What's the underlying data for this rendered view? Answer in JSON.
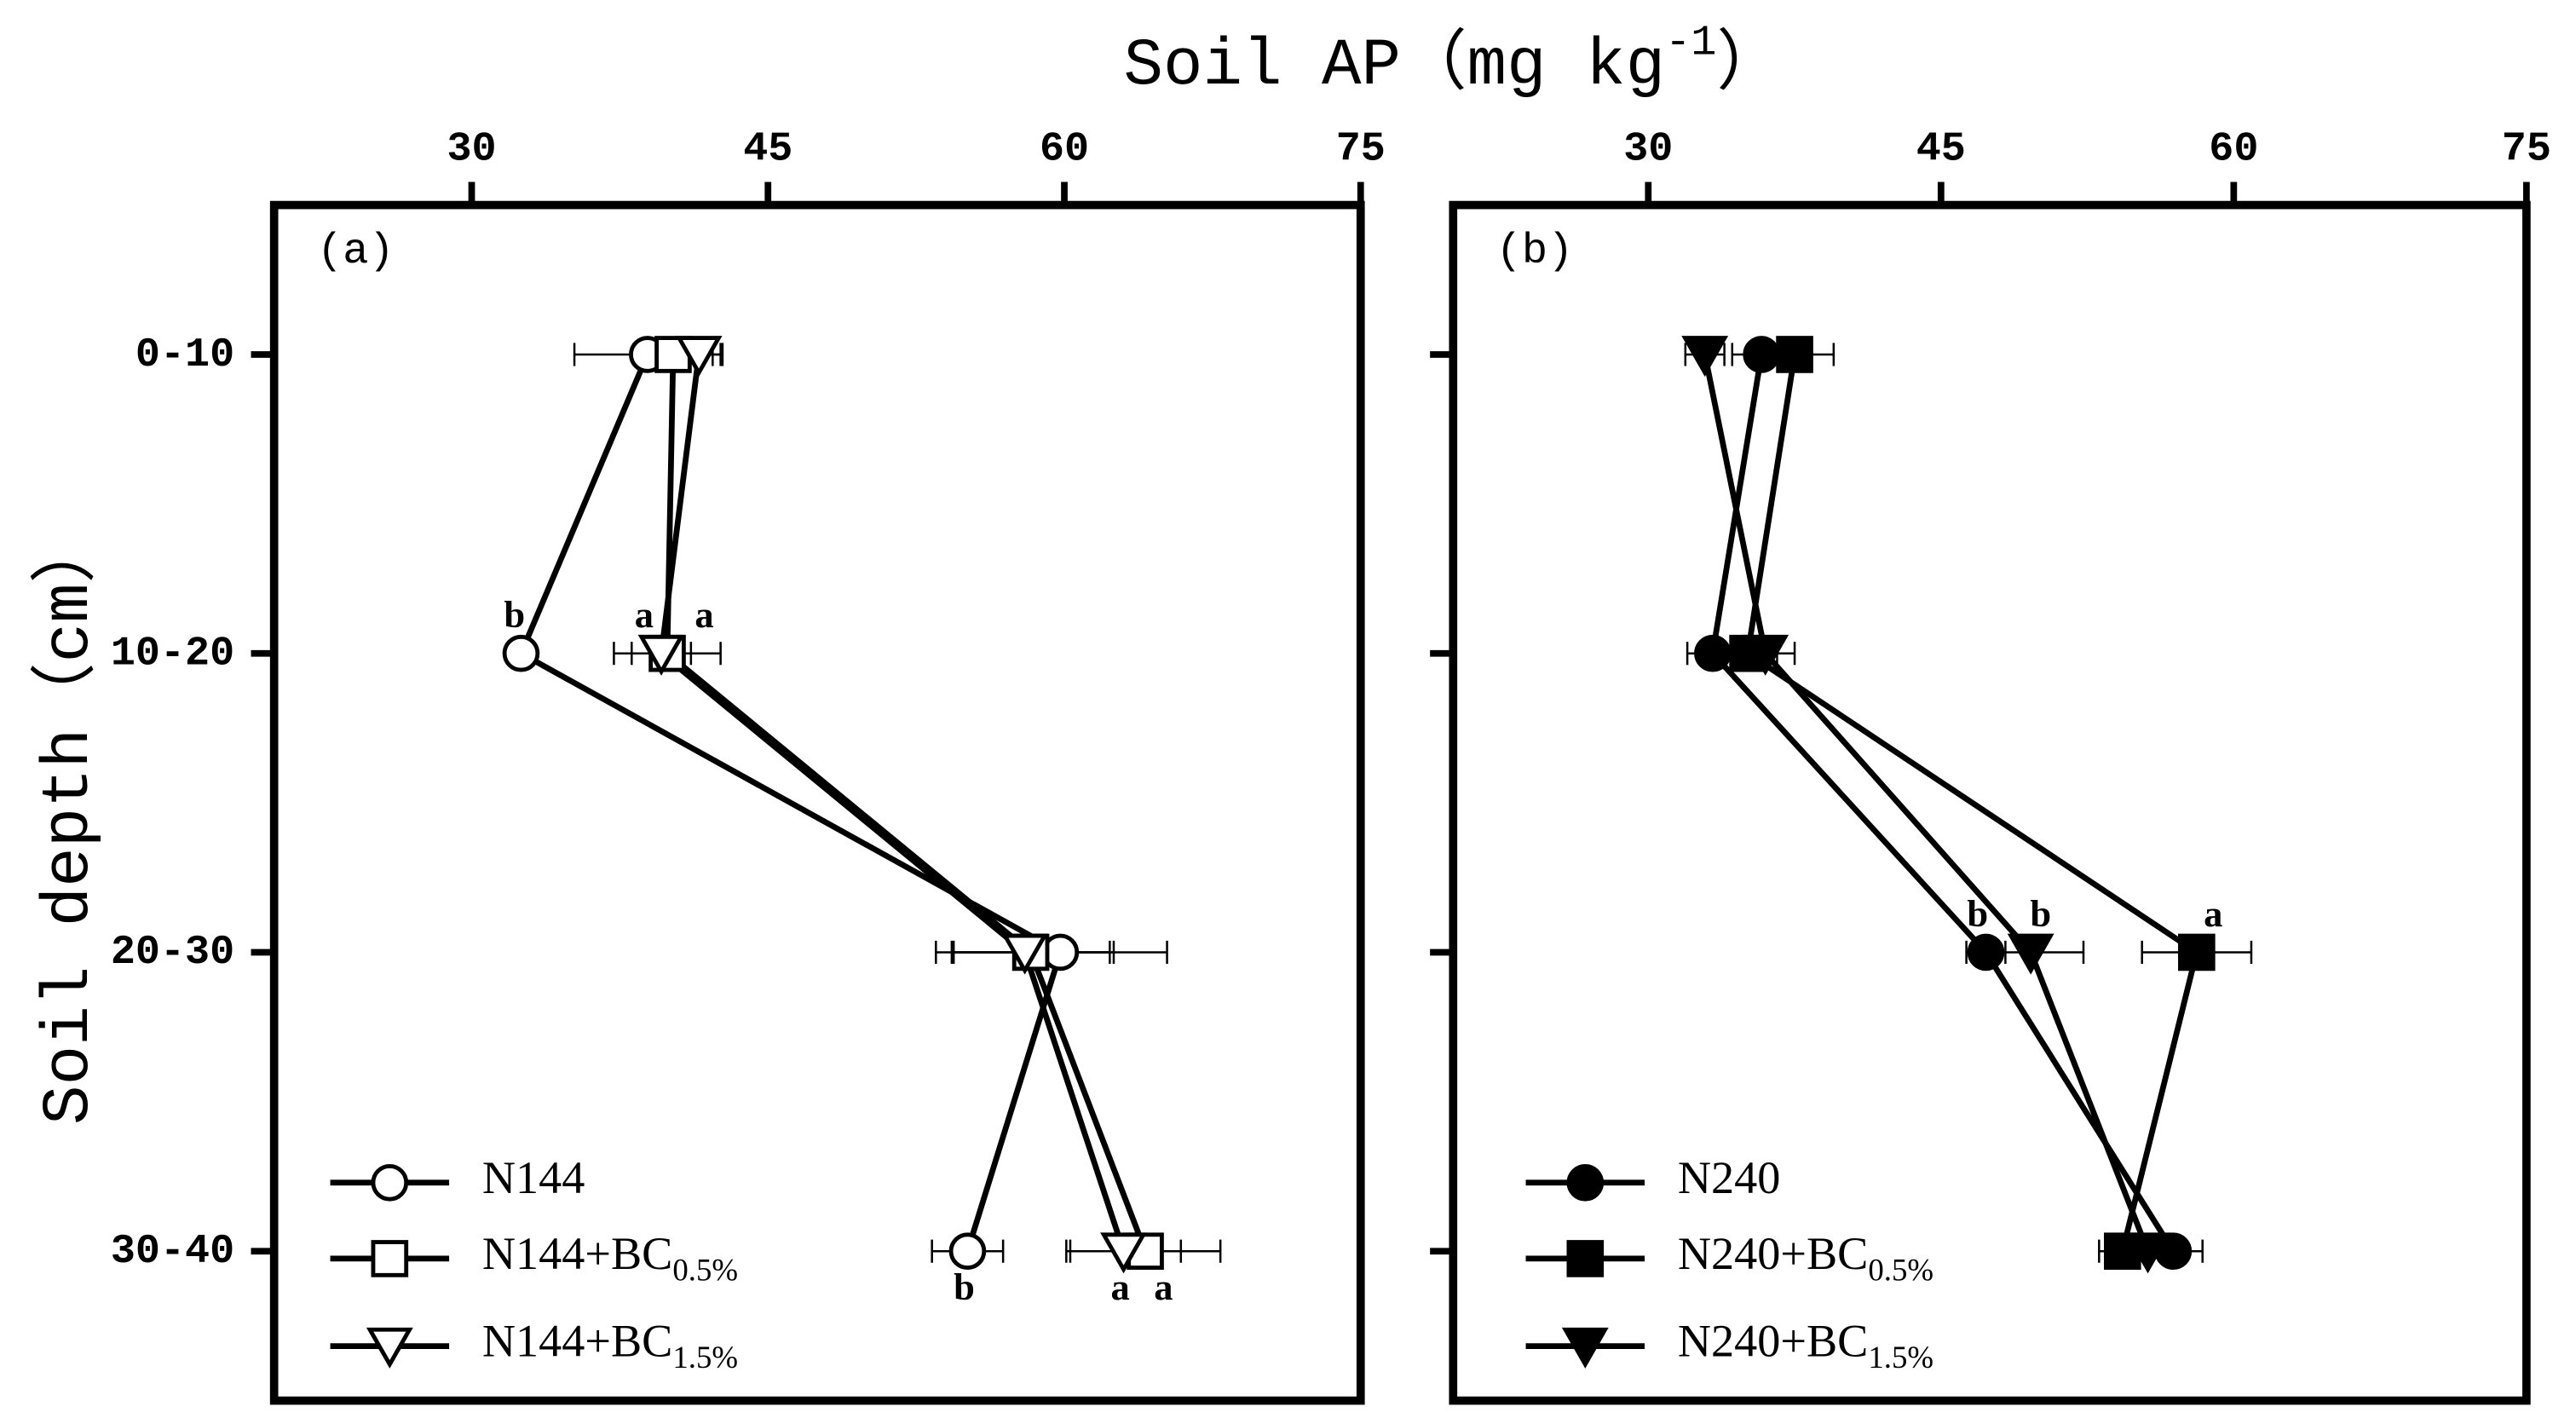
{
  "chart_data": [
    {
      "type": "line",
      "panel_label": "(a)",
      "xlabel": {
        "text": "Soil AP（mg kg",
        "sup": "-1",
        "close": "）"
      },
      "ylabel": "Soil depth（cm）",
      "categories": [
        "0-10",
        "10-20",
        "20-30",
        "30-40"
      ],
      "xlim": [
        20,
        75
      ],
      "xticks": [
        30,
        45,
        60,
        75
      ],
      "legend": "lower left",
      "series": [
        {
          "name": "N144",
          "marker": "circle",
          "fill": "#ffffff",
          "color": "#000000",
          "values": [
            38.9,
            32.5,
            59.8,
            55.1
          ],
          "errors": [
            3.7,
            0.5,
            5.4,
            1.8
          ],
          "labels": [
            null,
            "b",
            null,
            "b"
          ]
        },
        {
          "name": "N144+BC",
          "name_sub": "0.5%",
          "marker": "square",
          "fill": "#ffffff",
          "color": "#000000",
          "values": [
            40.2,
            39.9,
            58.3,
            64.1
          ],
          "errors": [
            2.0,
            2.7,
            4.0,
            3.8
          ],
          "labels": [
            null,
            "a",
            null,
            "a"
          ]
        },
        {
          "name": "N144+BC",
          "name_sub": "1.5%",
          "marker": "triangle",
          "fill": "#ffffff",
          "color": "#000000",
          "values": [
            41.5,
            39.6,
            58.0,
            63.0
          ],
          "errors": [
            1.2,
            1.5,
            4.5,
            2.9
          ],
          "labels": [
            null,
            "a",
            null,
            "a"
          ]
        }
      ]
    },
    {
      "type": "line",
      "panel_label": "(b)",
      "categories": [
        null,
        null,
        null,
        null
      ],
      "xlim": [
        20,
        75
      ],
      "xticks": [
        30,
        45,
        60,
        75
      ],
      "legend": "lower left",
      "series": [
        {
          "name": "N240",
          "marker": "circle",
          "fill": "#000000",
          "color": "#000000",
          "values": [
            35.8,
            33.3,
            47.3,
            56.9
          ],
          "errors": [
            1.5,
            1.3,
            1.0,
            1.5
          ],
          "labels": [
            null,
            null,
            "b",
            null
          ]
        },
        {
          "name": "N240+BC",
          "name_sub": "0.5%",
          "marker": "square",
          "fill": "#000000",
          "color": "#000000",
          "values": [
            37.5,
            35.1,
            58.1,
            54.3
          ],
          "errors": [
            2.0,
            1.5,
            2.8,
            1.2
          ],
          "labels": [
            null,
            null,
            "a",
            null
          ]
        },
        {
          "name": "N240+BC",
          "name_sub": "1.5%",
          "marker": "triangle",
          "fill": "#000000",
          "color": "#000000",
          "values": [
            32.9,
            36.0,
            49.6,
            55.6
          ],
          "errors": [
            1.0,
            1.5,
            2.7,
            1.2
          ],
          "labels": [
            null,
            null,
            "b",
            null
          ]
        }
      ]
    }
  ]
}
